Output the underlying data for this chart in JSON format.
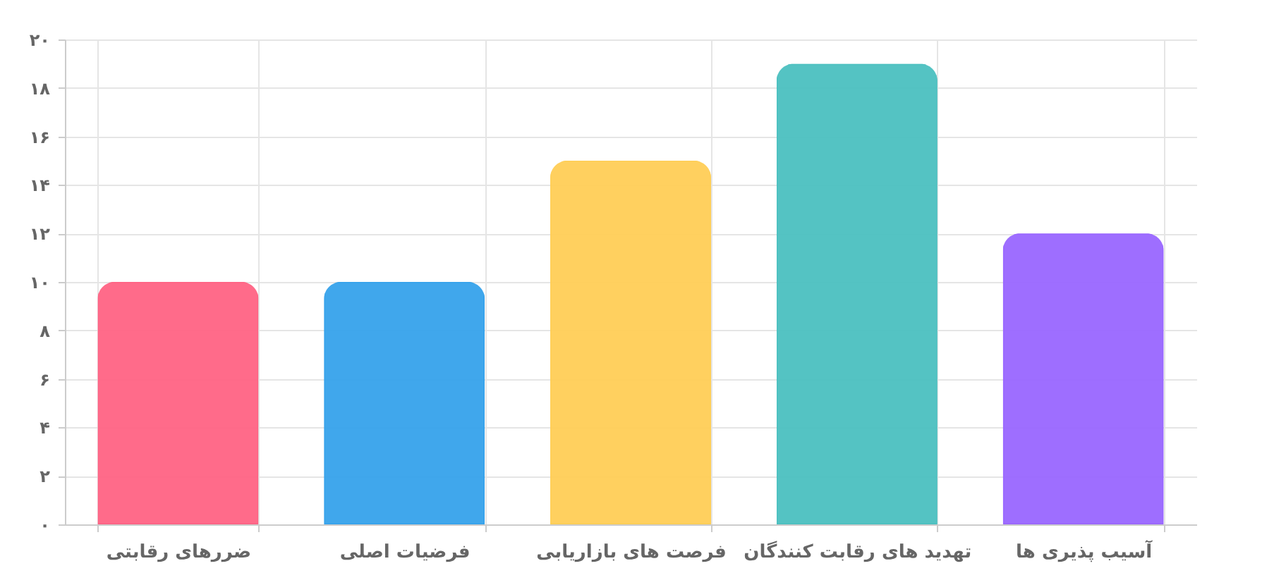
{
  "chart_data": {
    "type": "bar",
    "categories": [
      "ضررهای رقابتی",
      "فرضیات اصلی",
      "فرصت های بازاریابی",
      "تهدید های رقابت کنندگان",
      "آسیب پذیری ها"
    ],
    "values": [
      10,
      10,
      15,
      19,
      12
    ],
    "colors": [
      "#ff6384",
      "#36a2eb",
      "#ffce56",
      "#4bc0c0",
      "#9966ff"
    ],
    "ylim": [
      0,
      20
    ],
    "yticks": [
      {
        "value": 0,
        "label": "۰"
      },
      {
        "value": 2,
        "label": "۲"
      },
      {
        "value": 4,
        "label": "۴"
      },
      {
        "value": 6,
        "label": "۶"
      },
      {
        "value": 8,
        "label": "۸"
      },
      {
        "value": 10,
        "label": "۱۰"
      },
      {
        "value": 12,
        "label": "۱۲"
      },
      {
        "value": 14,
        "label": "۱۴"
      },
      {
        "value": 16,
        "label": "۱۶"
      },
      {
        "value": 18,
        "label": "۱۸"
      },
      {
        "value": 20,
        "label": "۲۰"
      }
    ],
    "grid": true
  }
}
